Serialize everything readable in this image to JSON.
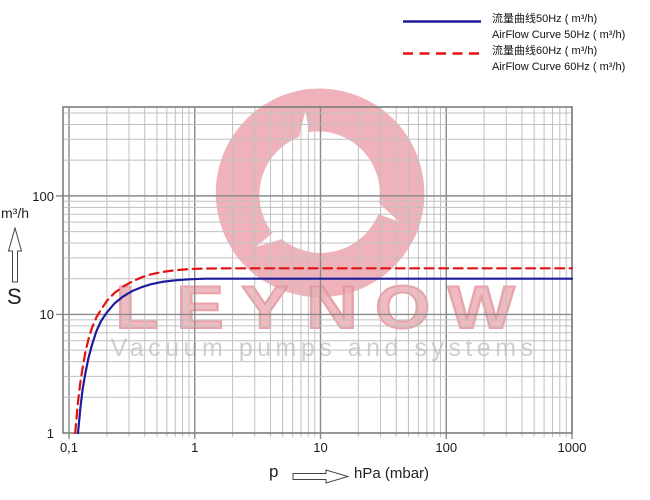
{
  "legend": {
    "items": [
      {
        "label_cn": "流量曲线50Hz ( m³/h)",
        "label_en": "AirFlow Curve 50Hz ( m³/h)",
        "color": "#1c1c9c",
        "style": "solid"
      },
      {
        "label_cn": "流量曲线60Hz ( m³/h)",
        "label_en": "AirFlow Curve 60Hz ( m³/h)",
        "color": "#e21212",
        "style": "dashed"
      }
    ]
  },
  "axes": {
    "y_unit": "m³/h",
    "y_symbol": "S",
    "x_symbol": "p",
    "x_unit": "hPa (mbar)"
  },
  "watermark": {
    "title": "LEYNOW",
    "subtitle": "Vacuum pumps and systems",
    "logo_color": "#f0b2ba"
  },
  "colors": {
    "grid_minor": "#c0c0c0",
    "grid_major": "#8a8a8a",
    "frame": "#7d7d7d",
    "curve_50hz": "#1c1c9c",
    "curve_60hz": "#e21212"
  },
  "icons": {
    "y_axis_arrow": "up-arrow-outline",
    "x_axis_arrow": "right-arrow-outline",
    "logo": "leynow-triangular-swirl"
  },
  "chart_data": {
    "type": "line",
    "x_scale": "log",
    "y_scale": "log",
    "xlim": [
      0.1,
      1000
    ],
    "ylim": [
      1,
      500
    ],
    "xlabel": "p — hPa (mbar)",
    "ylabel": "S — m³/h",
    "grid": true,
    "legend_position": "top-right",
    "x_ticks": [
      {
        "label": "0,1",
        "value": 0.1
      },
      {
        "label": "1",
        "value": 1
      },
      {
        "label": "10",
        "value": 10
      },
      {
        "label": "100",
        "value": 100
      },
      {
        "label": "1000",
        "value": 1000
      }
    ],
    "y_ticks": [
      {
        "label": "1",
        "value": 1
      },
      {
        "label": "10",
        "value": 10
      },
      {
        "label": "100",
        "value": 100
      }
    ],
    "series": [
      {
        "name": "AirFlow Curve 50Hz (m³/h)",
        "key": "airflow-curve-50hz",
        "color": "#1c1c9c",
        "style": "solid",
        "points": [
          [
            0.118,
            1
          ],
          [
            0.123,
            1.6
          ],
          [
            0.128,
            2.3
          ],
          [
            0.135,
            3.2
          ],
          [
            0.143,
            4.3
          ],
          [
            0.152,
            5.5
          ],
          [
            0.165,
            7.2
          ],
          [
            0.18,
            8.8
          ],
          [
            0.2,
            10.4
          ],
          [
            0.23,
            12.4
          ],
          [
            0.27,
            14.2
          ],
          [
            0.32,
            15.8
          ],
          [
            0.38,
            17
          ],
          [
            0.45,
            18
          ],
          [
            0.55,
            18.8
          ],
          [
            0.7,
            19.4
          ],
          [
            0.9,
            19.8
          ],
          [
            1.2,
            20
          ],
          [
            2,
            20
          ],
          [
            5,
            20
          ],
          [
            10,
            20
          ],
          [
            50,
            20
          ],
          [
            100,
            20
          ],
          [
            500,
            20
          ],
          [
            1000,
            20
          ]
        ]
      },
      {
        "name": "AirFlow Curve 60Hz (m³/h)",
        "key": "airflow-curve-60hz",
        "color": "#e21212",
        "style": "dashed",
        "points": [
          [
            0.112,
            1
          ],
          [
            0.117,
            1.7
          ],
          [
            0.122,
            2.5
          ],
          [
            0.128,
            3.5
          ],
          [
            0.135,
            4.8
          ],
          [
            0.143,
            6.2
          ],
          [
            0.153,
            7.8
          ],
          [
            0.165,
            9.4
          ],
          [
            0.18,
            11
          ],
          [
            0.2,
            13
          ],
          [
            0.23,
            15.2
          ],
          [
            0.27,
            17.2
          ],
          [
            0.32,
            19
          ],
          [
            0.38,
            20.6
          ],
          [
            0.45,
            21.8
          ],
          [
            0.55,
            22.8
          ],
          [
            0.7,
            23.6
          ],
          [
            0.9,
            24.1
          ],
          [
            1.2,
            24.4
          ],
          [
            2,
            24.5
          ],
          [
            5,
            24.5
          ],
          [
            10,
            24.5
          ],
          [
            50,
            24.5
          ],
          [
            100,
            24.5
          ],
          [
            500,
            24.5
          ],
          [
            1000,
            24.5
          ]
        ]
      }
    ]
  }
}
